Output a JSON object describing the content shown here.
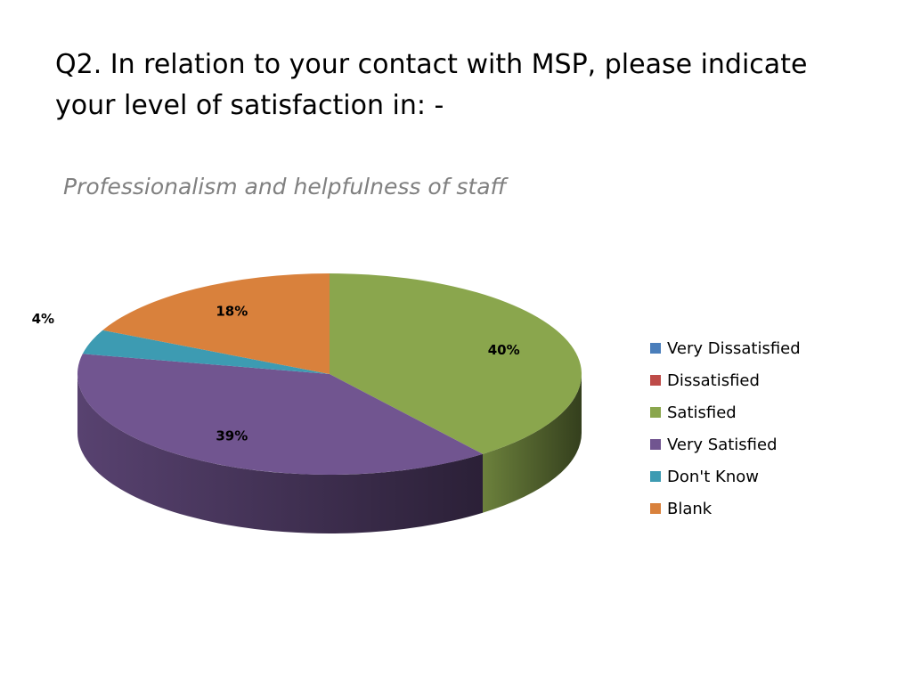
{
  "slide": {
    "title": "Q2. In relation to your contact with MSP, please indicate your level of satisfaction in: -"
  },
  "chart_data": {
    "type": "pie",
    "title": "Professionalism and helpfulness of staff",
    "legend_position": "right",
    "three_d": true,
    "categories": [
      "Very Dissatisfied",
      "Dissatisfied",
      "Satisfied",
      "Very Satisfied",
      "Don't Know",
      "Blank"
    ],
    "values": [
      0,
      0,
      40,
      39,
      4,
      18
    ],
    "labels": [
      "",
      "",
      "40%",
      "39%",
      "4%",
      "18%"
    ],
    "colors": [
      "#4a7ebb",
      "#be4b48",
      "#8aa64d",
      "#715590",
      "#3d9bb2",
      "#d9813c"
    ]
  }
}
